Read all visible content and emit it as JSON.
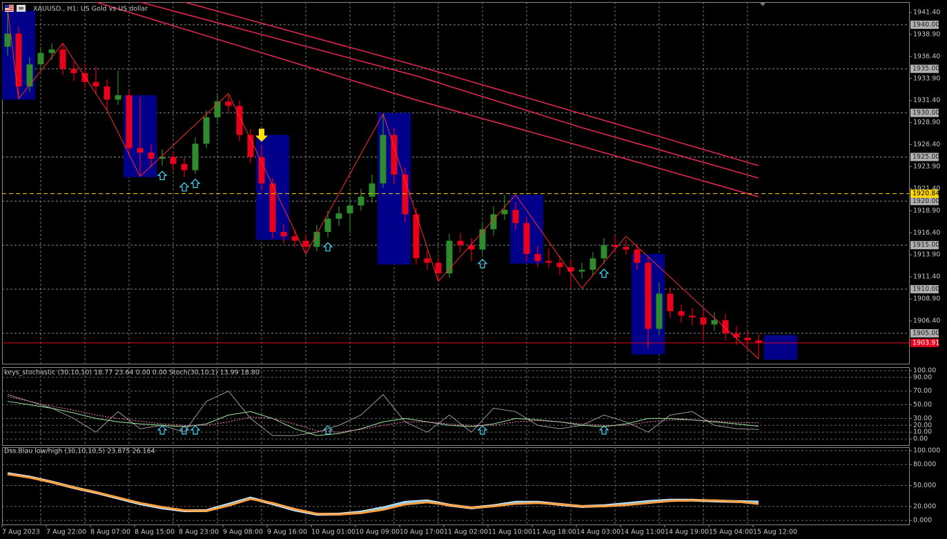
{
  "chart_data": [
    {
      "type": "candlestick",
      "title": "XAUUSD., H1: US Gold vs US dollar",
      "categories": [
        "7 Aug 2023",
        null,
        null,
        null,
        "7 Aug 22:00",
        null,
        null,
        null,
        "8 Aug 07:00",
        null,
        null,
        null,
        "8 Aug 15:00",
        null,
        null,
        null,
        "8 Aug 23:00",
        null,
        null,
        null,
        "9 Aug 08:00",
        null,
        null,
        null,
        "9 Aug 16:00",
        null,
        null,
        null,
        "10 Aug 01:00",
        null,
        null,
        null,
        "10 Aug 09:00",
        null,
        null,
        null,
        "10 Aug 17:00",
        null,
        null,
        null,
        "11 Aug 02:00",
        null,
        null,
        null,
        "11 Aug 10:00",
        null,
        null,
        null,
        "11 Aug 18:00",
        null,
        null,
        null,
        "14 Aug 03:00",
        null,
        null,
        null,
        "14 Aug 11:00",
        null,
        null,
        null,
        "14 Aug 19:00",
        null,
        null,
        null,
        "15 Aug 04:00",
        null,
        null,
        null,
        "15 Aug 12:00"
      ],
      "open": [
        1937.5,
        1939.0,
        1933.0,
        1935.5,
        1936.8,
        1937.2,
        1935.0,
        1934.5,
        1933.5,
        1933.0,
        1931.5,
        1932.0,
        1926.0,
        1925.5,
        1924.8,
        1925.0,
        1924.2,
        1923.5,
        1926.5,
        1929.5,
        1931.3,
        1930.8,
        1927.5,
        1925.0,
        1922.0,
        1916.5,
        1916.0,
        1915.5,
        1914.8,
        1916.5,
        1918.0,
        1918.6,
        1919.5,
        1920.5,
        1922.0,
        1927.5,
        1923.0,
        1918.5,
        1913.5,
        1913.0,
        1911.8,
        1915.5,
        1915.0,
        1914.5,
        1916.8,
        1918.5,
        1919.0,
        1917.5,
        1914.0,
        1913.2,
        1913.0,
        1912.5,
        1912.0,
        1912.2,
        1913.5,
        1915.0,
        1914.8,
        1914.5,
        1913.0,
        1905.5,
        1909.5,
        1907.5,
        1907.0,
        1906.8,
        1906.0,
        1906.5,
        1905.0,
        1904.5,
        1904.2
      ],
      "high": [
        1941.8,
        1939.8,
        1936.3,
        1937.5,
        1937.9,
        1937.8,
        1935.8,
        1935.6,
        1935.2,
        1933.8,
        1934.8,
        1932.6,
        1931.8,
        1926.4,
        1925.9,
        1925.6,
        1924.9,
        1927.2,
        1930.3,
        1932.2,
        1932.0,
        1931.4,
        1928.2,
        1926.4,
        1922.6,
        1917.4,
        1916.8,
        1916.2,
        1917.3,
        1918.9,
        1919.4,
        1920.3,
        1921.4,
        1923.0,
        1929.9,
        1928.3,
        1923.8,
        1919.2,
        1914.4,
        1913.6,
        1916.3,
        1916.4,
        1915.8,
        1917.6,
        1919.4,
        1920.7,
        1919.9,
        1918.2,
        1914.9,
        1914.6,
        1913.8,
        1913.4,
        1913.0,
        1914.2,
        1915.8,
        1916.0,
        1915.6,
        1915.2,
        1913.6,
        1910.8,
        1910.2,
        1908.2,
        1907.9,
        1907.6,
        1907.4,
        1907.2,
        1905.8,
        1905.3,
        1904.9
      ],
      "low": [
        1936.5,
        1931.6,
        1932.4,
        1934.8,
        1936.0,
        1934.3,
        1933.6,
        1932.8,
        1932.2,
        1930.3,
        1930.9,
        1925.2,
        1922.8,
        1923.9,
        1924.0,
        1923.4,
        1922.7,
        1923.1,
        1926.0,
        1929.0,
        1930.0,
        1926.8,
        1924.3,
        1921.2,
        1915.8,
        1915.2,
        1914.8,
        1914.0,
        1914.3,
        1915.9,
        1917.2,
        1916.4,
        1918.9,
        1919.8,
        1921.5,
        1921.9,
        1917.6,
        1912.8,
        1912.2,
        1910.9,
        1911.3,
        1914.2,
        1913.2,
        1914.0,
        1916.1,
        1917.9,
        1916.7,
        1913.2,
        1912.5,
        1912.4,
        1911.6,
        1910.1,
        1911.2,
        1911.6,
        1912.9,
        1914.1,
        1913.9,
        1912.2,
        1903.3,
        1904.8,
        1906.7,
        1906.2,
        1905.9,
        1904.2,
        1905.3,
        1904.2,
        1903.7,
        1903.2,
        1902.1
      ],
      "close": [
        1939.0,
        1933.0,
        1935.5,
        1936.8,
        1937.2,
        1935.0,
        1934.5,
        1933.5,
        1933.0,
        1931.5,
        1932.0,
        1926.0,
        1925.5,
        1924.8,
        1925.0,
        1924.2,
        1923.5,
        1926.5,
        1929.5,
        1931.3,
        1930.8,
        1927.5,
        1925.0,
        1922.0,
        1916.5,
        1916.0,
        1915.5,
        1914.8,
        1916.5,
        1918.0,
        1918.6,
        1919.5,
        1920.5,
        1922.0,
        1927.5,
        1923.0,
        1918.5,
        1913.5,
        1913.0,
        1911.8,
        1915.5,
        1915.0,
        1914.5,
        1916.8,
        1918.5,
        1919.0,
        1917.5,
        1914.0,
        1913.2,
        1913.0,
        1912.5,
        1912.0,
        1912.2,
        1913.5,
        1915.0,
        1914.8,
        1914.5,
        1913.0,
        1905.5,
        1909.5,
        1907.5,
        1907.0,
        1906.8,
        1906.0,
        1906.5,
        1905.0,
        1904.5,
        1904.2,
        1903.91
      ],
      "up_color": "#2e8b2e",
      "down_color": "#e8001c",
      "ylim": [
        1901.55,
        1942.57
      ],
      "yticks": [
        {
          "value": 1941.4,
          "label": "1941.40"
        },
        {
          "value": 1938.9,
          "label": "1938.90"
        },
        {
          "value": 1936.4,
          "label": "1936.40"
        },
        {
          "value": 1933.9,
          "label": "1933.90"
        },
        {
          "value": 1931.4,
          "label": "1931.40"
        },
        {
          "value": 1928.9,
          "label": "1928.90"
        },
        {
          "value": 1926.4,
          "label": "1926.40"
        },
        {
          "value": 1923.9,
          "label": "1923.90"
        },
        {
          "value": 1921.4,
          "label": "1921.40"
        },
        {
          "value": 1918.9,
          "label": "1918.90"
        },
        {
          "value": 1916.4,
          "label": "1916.40"
        },
        {
          "value": 1913.9,
          "label": "1913.90"
        },
        {
          "value": 1911.4,
          "label": "1911.40"
        },
        {
          "value": 1908.9,
          "label": "1908.90"
        },
        {
          "value": 1906.4,
          "label": "1906.40"
        }
      ],
      "grid": true,
      "levels": [
        {
          "value": 1940,
          "label": "1940.00"
        },
        {
          "value": 1935,
          "label": "1935.00"
        },
        {
          "value": 1930,
          "label": "1930.00"
        },
        {
          "value": 1925,
          "label": "1925.00"
        },
        {
          "value": 1920,
          "label": "1920.00"
        },
        {
          "value": 1915,
          "label": "1915.00"
        },
        {
          "value": 1910,
          "label": "1910.00"
        },
        {
          "value": 1905,
          "label": "1905.00"
        }
      ],
      "level_color": "#8a8a8a",
      "marked_levels": [
        {
          "value": 1920.84,
          "label": "1920.84",
          "color": "#ffd700"
        },
        {
          "value": 1903.91,
          "label": "1903.91",
          "color": "#e8001c"
        }
      ],
      "zones": [
        {
          "from": 0,
          "to": 2,
          "high": 1941.6,
          "low": 1931.5
        },
        {
          "from": 11,
          "to": 13,
          "high": 1932.0,
          "low": 1922.7
        },
        {
          "from": 23,
          "to": 25,
          "high": 1927.5,
          "low": 1915.6
        },
        {
          "from": 34,
          "to": 36,
          "high": 1930.0,
          "low": 1912.8
        },
        {
          "from": 46,
          "to": 48,
          "high": 1920.7,
          "low": 1912.9
        },
        {
          "from": 57,
          "to": 59,
          "high": 1914.0,
          "low": 1902.6
        },
        {
          "from": 69,
          "to": 71,
          "high": 1904.8,
          "low": 1902.0
        }
      ],
      "zone_color": "#00008b",
      "zigzag": {
        "color": "#ff2a2a",
        "points": [
          [
            0,
            1941.8
          ],
          [
            1,
            1931.6
          ],
          [
            5,
            1937.9
          ],
          [
            9,
            1930.3
          ],
          [
            12,
            1922.8
          ],
          [
            20,
            1932.2
          ],
          [
            27,
            1914.0
          ],
          [
            34,
            1929.9
          ],
          [
            39,
            1910.9
          ],
          [
            46,
            1920.7
          ],
          [
            52,
            1910.1
          ],
          [
            56,
            1916.0
          ],
          [
            68,
            1902.1
          ]
        ]
      },
      "moving_averages": {
        "color": "#e0284e",
        "series": [
          {
            "x": [
              16,
              37,
              52,
              68
            ],
            "values": [
              1942.57,
              1935.37,
              1929.89,
              1924.02
            ]
          },
          {
            "x": [
              12,
              37,
              52,
              68
            ],
            "values": [
              1942.57,
              1934.2,
              1928.32,
              1922.61
            ]
          },
          {
            "x": [
              8,
              37,
              52,
              68
            ],
            "values": [
              1942.57,
              1931.46,
              1926.21,
              1920.49
            ]
          }
        ]
      },
      "signals_up": [
        14,
        16,
        17,
        29,
        43,
        54
      ],
      "signal_up_color": "#40e0ff",
      "signal_down": [
        23
      ],
      "signal_down_color": "#ffe000"
    },
    {
      "type": "line",
      "title": "keys_stochastic (30,10,10) 18.77 23.64 0.00 0.00 Stoch(30,10,1) 13.99 18.80",
      "x": [
        0,
        2,
        4,
        6,
        8,
        10,
        12,
        14,
        16,
        18,
        20,
        22,
        24,
        26,
        28,
        30,
        32,
        34,
        36,
        38,
        40,
        42,
        44,
        46,
        48,
        50,
        52,
        54,
        56,
        58,
        60,
        62,
        64,
        66,
        68
      ],
      "series": [
        {
          "color": "#9a9a9a",
          "values": [
            65,
            55,
            45,
            30,
            10,
            40,
            15,
            20,
            10,
            55,
            70,
            30,
            5,
            5,
            10,
            20,
            35,
            65,
            25,
            10,
            35,
            10,
            45,
            40,
            20,
            15,
            20,
            35,
            25,
            10,
            35,
            40,
            20,
            15,
            13.99
          ]
        },
        {
          "color": "#9ee89e",
          "values": [
            55,
            50,
            45,
            38,
            30,
            25,
            22,
            20,
            18,
            22,
            35,
            40,
            30,
            15,
            5,
            8,
            15,
            25,
            30,
            25,
            20,
            18,
            22,
            30,
            28,
            25,
            20,
            18,
            22,
            30,
            30,
            28,
            25,
            22,
            18.8
          ]
        },
        {
          "color": "#ff80c0",
          "dash": true,
          "values": [
            62,
            55,
            48,
            42,
            35,
            30,
            26,
            22,
            20,
            20,
            25,
            32,
            30,
            22,
            12,
            10,
            14,
            20,
            25,
            25,
            22,
            20,
            20,
            25,
            27,
            25,
            22,
            20,
            20,
            25,
            28,
            28,
            26,
            24,
            23.64
          ]
        }
      ],
      "ylim": [
        -9,
        105
      ],
      "yticks": [
        {
          "value": 100,
          "label": "100.00"
        },
        {
          "value": 90,
          "label": "90.00"
        },
        {
          "value": 70,
          "label": "70.00"
        },
        {
          "value": 50,
          "label": "50.00"
        },
        {
          "value": 30,
          "label": "30.00"
        },
        {
          "value": 20,
          "label": "20.00"
        },
        {
          "value": 10,
          "label": "10.00"
        },
        {
          "value": 0,
          "label": "0.00"
        }
      ],
      "grid": true
    },
    {
      "type": "line",
      "title": "Dss.Blau low/high (30,10,10,5) 23.875 26.164",
      "x": [
        0,
        2,
        4,
        6,
        8,
        10,
        12,
        14,
        16,
        18,
        20,
        22,
        24,
        26,
        28,
        30,
        32,
        34,
        36,
        38,
        40,
        42,
        44,
        46,
        48,
        50,
        52,
        54,
        56,
        58,
        60,
        62,
        64,
        66,
        68
      ],
      "series": [
        {
          "color": "#e8f6ff",
          "width": 4,
          "values": [
            67,
            62,
            55,
            47,
            40,
            32,
            24,
            18,
            14,
            14,
            23,
            32,
            24,
            15,
            9,
            9,
            12,
            18,
            26,
            28,
            22,
            18,
            21,
            26,
            26,
            23,
            20,
            21,
            24,
            27,
            29,
            29,
            28,
            27,
            26.164
          ]
        },
        {
          "color": "#7fd0ff",
          "width": 2,
          "values": [
            67,
            62,
            55,
            47,
            40,
            32,
            24,
            18,
            14,
            14,
            23,
            32,
            24,
            15,
            9,
            9,
            12,
            18,
            26,
            28,
            22,
            18,
            21,
            26,
            26,
            23,
            20,
            21,
            24,
            27,
            29,
            29,
            28,
            27,
            26.164
          ]
        },
        {
          "color": "#ffa040",
          "width": 3,
          "values": [
            66.3,
            61.5,
            54.8,
            47.1,
            40.4,
            32.7,
            25,
            19.2,
            14.4,
            13.5,
            21.2,
            30.8,
            25,
            16.3,
            9.6,
            8.7,
            10.6,
            15.4,
            23.1,
            26,
            22.1,
            18.3,
            20.2,
            24,
            25,
            23.1,
            20.2,
            20.2,
            22.1,
            25,
            27.9,
            28.8,
            28.8,
            26.9,
            23.875
          ]
        }
      ],
      "ylim": [
        -5.8,
        104.8
      ],
      "yticks": [
        {
          "value": 100,
          "label": "100.000"
        },
        {
          "value": 80,
          "label": "80.000"
        },
        {
          "value": 50,
          "label": "50.000"
        },
        {
          "value": 20,
          "label": "20.000"
        },
        {
          "value": 0,
          "label": "0.000"
        }
      ],
      "grid": true
    }
  ]
}
